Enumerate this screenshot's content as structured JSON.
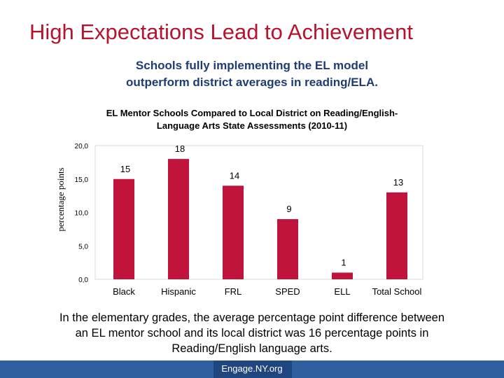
{
  "slide": {
    "title": "High Expectations Lead to Achievement",
    "subtitle_lines": [
      "Schools fully implementing the EL model",
      "outperform district averages in reading/ELA."
    ],
    "caption_lines": [
      "In the elementary grades, the average percentage point difference between",
      "an EL mentor school and its local district was 16 percentage points in",
      "Reading/English language arts."
    ],
    "footer": "Engage.NY.org"
  },
  "chart_data": {
    "type": "bar",
    "title_lines": [
      "EL Mentor Schools Compared to Local District on Reading/English-",
      "Language Arts State Assessments (2010-11)"
    ],
    "ylabel": "percentage points",
    "categories": [
      "Black",
      "Hispanic",
      "FRL",
      "SPED",
      "ELL",
      "Total School"
    ],
    "values": [
      15,
      18,
      14,
      9,
      1,
      13
    ],
    "data_labels": [
      "15",
      "18",
      "14",
      "9",
      "1",
      "13"
    ],
    "ylim": [
      0,
      20
    ],
    "yticks": [
      0,
      5,
      10,
      15,
      20
    ],
    "ytick_labels": [
      "0,0",
      "5,0",
      "10,0",
      "15,0",
      "20,0"
    ],
    "bar_color": "#c0143c",
    "grid": false
  }
}
